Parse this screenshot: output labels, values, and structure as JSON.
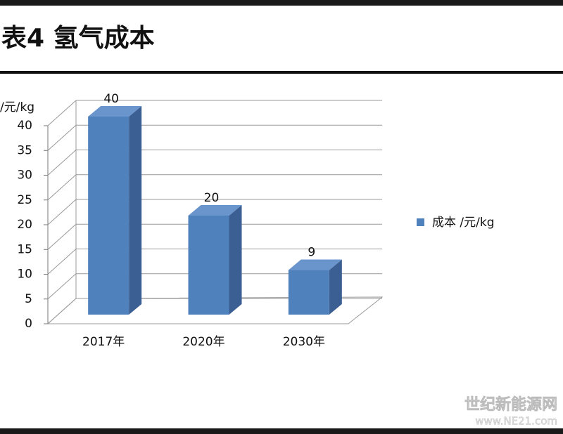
{
  "chart_data": {
    "type": "bar3d",
    "title": "表4 氢气成本",
    "y_label": "/元/kg",
    "categories": [
      "2017年",
      "2020年",
      "2030年"
    ],
    "series": [
      {
        "name": "成本 /元/kg",
        "color": "#4f81bd",
        "values": [
          40,
          20,
          9
        ]
      }
    ],
    "ylim": [
      0,
      40
    ],
    "yticks": [
      0,
      5,
      10,
      15,
      20,
      25,
      30,
      35,
      40
    ],
    "grid": true,
    "legend": "right",
    "watermark": [
      "世纪新能源网",
      "www.NE21.com"
    ]
  }
}
